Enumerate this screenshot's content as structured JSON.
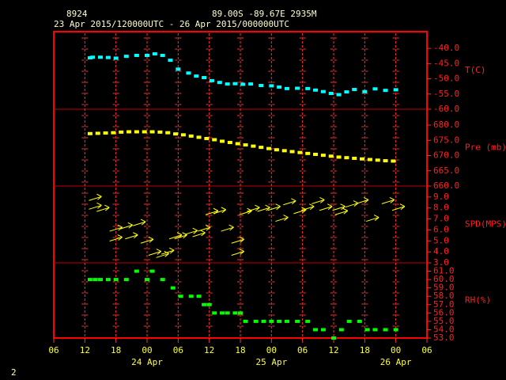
{
  "header": {
    "station": "8924",
    "location": "89.00S  -89.67E  2935M",
    "period": "23 Apr 2015/120000UTC - 26 Apr 2015/000000UTC",
    "page": "2"
  },
  "chart_data": [
    {
      "type": "scatter",
      "marker": "square",
      "color": "#00ffff",
      "axis_label": "T(C)",
      "ylim": [
        -60,
        -34.5
      ],
      "yticks": [
        {
          "value": -40,
          "label": "-40.0"
        },
        {
          "value": -45,
          "label": "-45.0"
        },
        {
          "value": -50,
          "label": "-50.0"
        },
        {
          "value": -55,
          "label": "-55.0"
        },
        {
          "value": -60,
          "label": "-60.0"
        }
      ],
      "x": [
        7,
        7.5,
        9,
        10.5,
        12,
        14,
        16,
        18,
        19.5,
        21,
        22.5,
        24,
        26,
        27.5,
        29,
        30.5,
        32,
        33.5,
        35,
        36.5,
        38,
        40,
        42,
        43.5,
        45,
        47,
        49,
        50.5,
        52,
        53.5,
        55,
        56.5,
        58,
        60,
        62,
        64,
        66
      ],
      "values": [
        -43.1,
        -42.9,
        -42.9,
        -43.0,
        -43.2,
        -42.6,
        -42.3,
        -42.3,
        -41.8,
        -42.3,
        -43.9,
        -46.8,
        -48.1,
        -49.1,
        -49.6,
        -50.6,
        -51.2,
        -51.7,
        -51.6,
        -51.8,
        -51.7,
        -52.2,
        -52.3,
        -52.7,
        -53.2,
        -53.1,
        -53.2,
        -53.7,
        -54.2,
        -54.8,
        -55.2,
        -54.3,
        -53.5,
        -54.2,
        -53.3,
        -53.8,
        -53.6
      ]
    },
    {
      "type": "scatter",
      "marker": "square",
      "color": "#ffff00",
      "axis_label": "Pre (mb)",
      "ylim": [
        660,
        685.2
      ],
      "yticks": [
        {
          "value": 680,
          "label": "680.0"
        },
        {
          "value": 675,
          "label": "675.0"
        },
        {
          "value": 670,
          "label": "670.0"
        },
        {
          "value": 665,
          "label": "665.0"
        },
        {
          "value": 660,
          "label": "660.0"
        }
      ],
      "x": [
        7,
        8.5,
        10,
        11.5,
        13,
        14.5,
        16,
        17.5,
        19,
        20.5,
        22,
        23.5,
        25,
        26.5,
        28,
        29.5,
        31,
        32.5,
        34,
        35.5,
        37,
        38.5,
        40,
        41.5,
        43,
        44.5,
        46,
        47.5,
        49,
        50.5,
        52,
        53.5,
        55,
        56.5,
        58,
        59.5,
        61,
        62.5,
        64,
        65.5
      ],
      "values": [
        677.2,
        677.3,
        677.4,
        677.5,
        677.7,
        677.8,
        677.8,
        677.8,
        677.8,
        677.7,
        677.5,
        677.1,
        676.8,
        676.4,
        676.0,
        675.6,
        675.2,
        674.7,
        674.3,
        673.9,
        673.5,
        673.1,
        672.7,
        672.3,
        671.9,
        671.6,
        671.3,
        671.0,
        670.7,
        670.4,
        670.1,
        669.8,
        669.5,
        669.3,
        669.1,
        668.9,
        668.7,
        668.5,
        668.3,
        668.2
      ]
    },
    {
      "type": "scatter",
      "marker": "arrow",
      "color": "#ffff00",
      "axis_label": "SPD(MPS)",
      "ylim": [
        3,
        10
      ],
      "yticks": [
        {
          "value": 9,
          "label": "9.0"
        },
        {
          "value": 8,
          "label": "8.0"
        },
        {
          "value": 7,
          "label": "7.0"
        },
        {
          "value": 6,
          "label": "6.0"
        },
        {
          "value": 5,
          "label": "5.0"
        },
        {
          "value": 4,
          "label": "4.0"
        },
        {
          "value": 3,
          "label": "3.0"
        }
      ],
      "x": [
        8,
        8,
        9.5,
        12,
        12,
        14,
        15,
        16.5,
        18,
        19.5,
        21,
        22,
        23.5,
        24.5,
        26.5,
        28,
        29,
        30.5,
        32,
        33.5,
        35.5,
        35.5,
        37,
        38.5,
        40.5,
        42.5,
        44,
        45.5,
        47.5,
        49,
        51,
        52.5,
        55,
        55.5,
        57.5,
        59.5,
        61.5,
        64.5,
        66.5
      ],
      "values": [
        8.9,
        8.1,
        7.9,
        6.1,
        5.2,
        6.3,
        5.4,
        6.6,
        5.0,
        3.9,
        3.7,
        4.0,
        5.4,
        5.4,
        5.8,
        5.6,
        6.1,
        7.6,
        7.7,
        6.1,
        5.0,
        3.9,
        7.6,
        7.9,
        7.9,
        8.0,
        7.0,
        8.5,
        7.7,
        8.0,
        8.6,
        8.0,
        8.0,
        7.6,
        8.3,
        8.6,
        7.0,
        8.6,
        8.0
      ]
    },
    {
      "type": "scatter",
      "marker": "square",
      "color": "#00ff00",
      "axis_label": "RH(%)",
      "ylim": [
        53,
        62
      ],
      "yticks": [
        {
          "value": 61,
          "label": "61.0"
        },
        {
          "value": 60,
          "label": "60.0"
        },
        {
          "value": 59,
          "label": "59.0"
        },
        {
          "value": 58,
          "label": "58.0"
        },
        {
          "value": 57,
          "label": "57.0"
        },
        {
          "value": 56,
          "label": "56.0"
        },
        {
          "value": 55,
          "label": "55.0"
        },
        {
          "value": 54,
          "label": "54.0"
        },
        {
          "value": 53,
          "label": "53.0"
        }
      ],
      "x": [
        7,
        8,
        9,
        10.5,
        12,
        14,
        16,
        18,
        19,
        21,
        23,
        24.5,
        26.5,
        28,
        29,
        30,
        31,
        32.5,
        33.5,
        35,
        36,
        37,
        39,
        40.5,
        42,
        43.5,
        45,
        47,
        49,
        50.5,
        52,
        54,
        55.5,
        57,
        59,
        60.5,
        62,
        64,
        66
      ],
      "values": [
        60,
        60,
        60,
        60,
        60,
        60,
        61,
        60,
        61,
        60,
        59,
        58,
        58,
        58,
        57,
        57,
        56,
        56,
        56,
        56,
        56,
        55,
        55,
        55,
        55,
        55,
        55,
        55,
        55,
        54,
        54,
        53,
        54,
        55,
        55,
        54,
        54,
        54,
        54
      ],
      "xlim": [
        0,
        72
      ],
      "xticks": [
        {
          "value": 0,
          "label": "06"
        },
        {
          "value": 6,
          "label": "12"
        },
        {
          "value": 12,
          "label": "18"
        },
        {
          "value": 18,
          "label": "00"
        },
        {
          "value": 24,
          "label": "06"
        },
        {
          "value": 30,
          "label": "12"
        },
        {
          "value": 36,
          "label": "18"
        },
        {
          "value": 42,
          "label": "00"
        },
        {
          "value": 48,
          "label": "06"
        },
        {
          "value": 54,
          "label": "12"
        },
        {
          "value": 60,
          "label": "18"
        },
        {
          "value": 66,
          "label": "00"
        },
        {
          "value": 72,
          "label": "06"
        }
      ],
      "date_ticks": [
        {
          "value": 18,
          "label": "24 Apr"
        },
        {
          "value": 42,
          "label": "25 Apr"
        },
        {
          "value": 66,
          "label": "26 Apr"
        }
      ]
    }
  ]
}
